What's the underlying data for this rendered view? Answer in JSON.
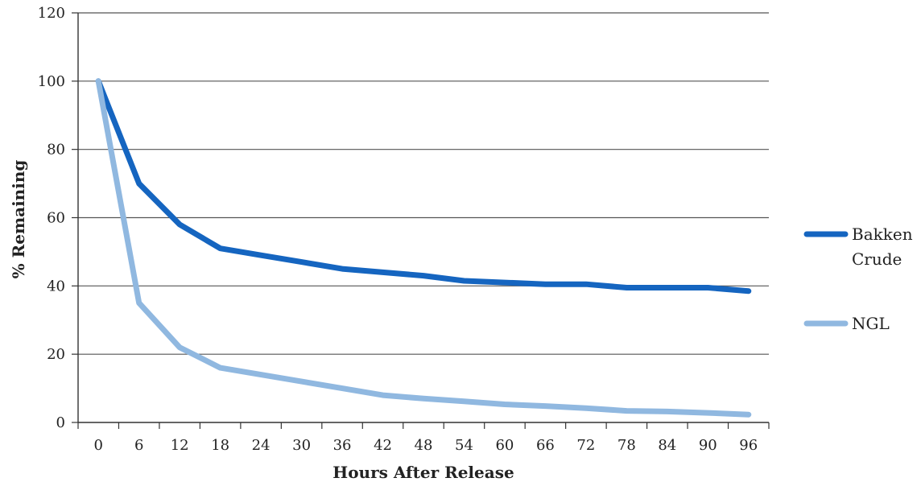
{
  "chart_data": {
    "type": "line",
    "title": "",
    "xlabel": "Hours After Release",
    "ylabel": "% Remaining",
    "x": [
      0,
      6,
      12,
      18,
      24,
      30,
      36,
      42,
      48,
      54,
      60,
      66,
      72,
      78,
      84,
      90,
      96
    ],
    "ylim": [
      0,
      120
    ],
    "yticks": [
      0,
      20,
      40,
      60,
      80,
      100,
      120
    ],
    "grid": true,
    "legend_position": "right",
    "series": [
      {
        "name": "Bakken Crude",
        "legend_lines": [
          "Bakken",
          "Crude"
        ],
        "color": "#1565c0",
        "values": [
          100,
          70,
          58,
          51,
          49,
          47,
          45,
          44,
          43,
          41.5,
          41,
          40.5,
          40.5,
          39.5,
          39.5,
          39.5,
          38.5
        ]
      },
      {
        "name": "NGL",
        "legend_lines": [
          "NGL"
        ],
        "color": "#90b8e0",
        "values": [
          100,
          35,
          22,
          16,
          14,
          12,
          10,
          8,
          7,
          6.2,
          5.3,
          4.8,
          4.2,
          3.4,
          3.2,
          2.8,
          2.3
        ]
      }
    ]
  }
}
